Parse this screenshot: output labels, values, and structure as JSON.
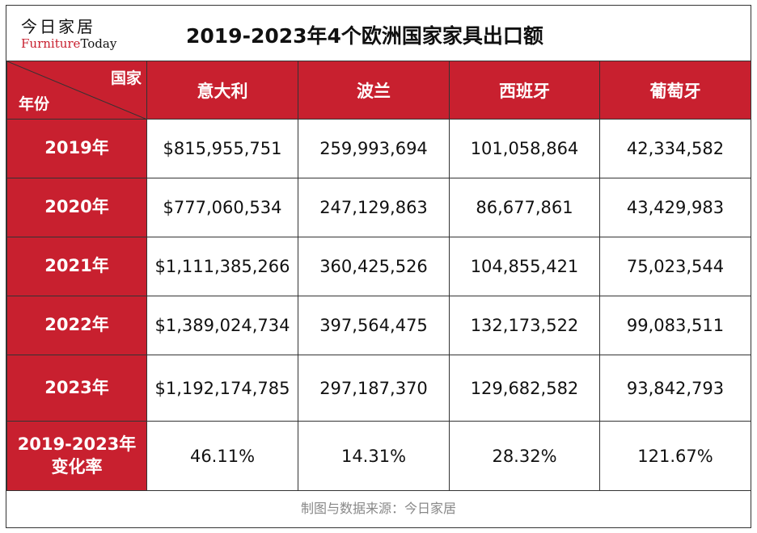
{
  "logo": {
    "cn": "今日家居",
    "en_part1": "Furniture",
    "en_part2": "Today"
  },
  "chart_data": {
    "type": "table",
    "title": "2019-2023年4个欧洲国家家具出口额",
    "corner_col_label": "国家",
    "corner_row_label": "年份",
    "columns": [
      "意大利",
      "波兰",
      "西班牙",
      "葡萄牙"
    ],
    "rows": [
      {
        "label": "2019年",
        "values": [
          "$815,955,751",
          "259,993,694",
          "101,058,864",
          "42,334,582"
        ]
      },
      {
        "label": "2020年",
        "values": [
          "$777,060,534",
          "247,129,863",
          "86,677,861",
          "43,429,983"
        ]
      },
      {
        "label": "2021年",
        "values": [
          "$1,111,385,266",
          "360,425,526",
          "104,855,421",
          "75,023,544"
        ]
      },
      {
        "label": "2022年",
        "values": [
          "$1,389,024,734",
          "397,564,475",
          "132,173,522",
          "99,083,511"
        ]
      },
      {
        "label": "2023年",
        "values": [
          "$1,192,174,785",
          "297,187,370",
          "129,682,582",
          "93,842,793"
        ]
      },
      {
        "label": "2019-2023年变化率",
        "values": [
          "46.11%",
          "14.31%",
          "28.32%",
          "121.67%"
        ]
      }
    ]
  },
  "footer": {
    "source": "制图与数据来源：今日家居"
  },
  "colors": {
    "header_bg": "#c8202f",
    "header_text": "#ffffff",
    "border": "#333333"
  }
}
